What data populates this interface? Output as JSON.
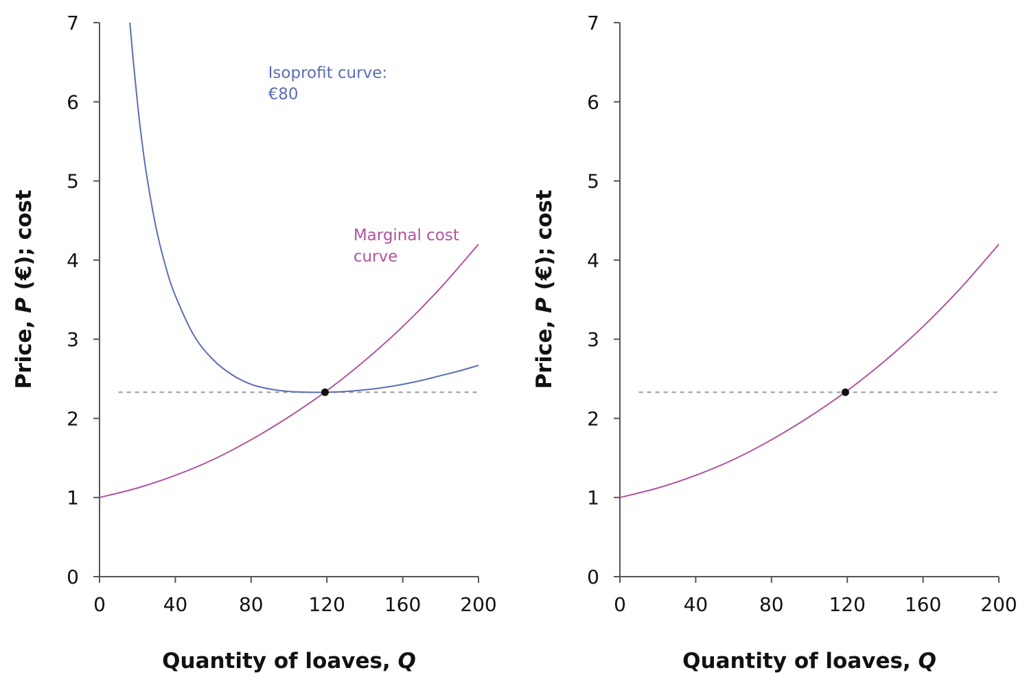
{
  "colors": {
    "isoprofit": "#5b6db4",
    "marginal_cost": "#b0539e",
    "reference_line": "#999999",
    "point": "#111111",
    "axis": "#555555"
  },
  "chart_data": [
    {
      "type": "line",
      "xlabel_parts": [
        "Quantity of loaves, ",
        "Q"
      ],
      "ylabel_parts": [
        "Price, ",
        "P",
        " (€); cost"
      ],
      "xlim": [
        0,
        200
      ],
      "ylim": [
        0,
        7
      ],
      "x_ticks": [
        0,
        40,
        80,
        120,
        160,
        200
      ],
      "y_ticks": [
        0,
        1,
        2,
        3,
        4,
        5,
        6,
        7
      ],
      "grid": false,
      "series": [
        {
          "key": "isoprofit",
          "x": [
            16,
            18,
            20,
            22,
            25,
            30,
            35,
            40,
            50,
            60,
            70,
            80,
            90,
            100,
            110,
            120,
            130,
            140,
            150,
            160,
            170,
            180,
            190,
            200
          ],
          "y": [
            7.0,
            6.47,
            5.99,
            5.57,
            5.05,
            4.39,
            3.91,
            3.55,
            3.04,
            2.74,
            2.55,
            2.43,
            2.37,
            2.34,
            2.33,
            2.33,
            2.34,
            2.36,
            2.39,
            2.43,
            2.48,
            2.54,
            2.6,
            2.67
          ]
        },
        {
          "key": "marginal_cost",
          "x": [
            0,
            20,
            40,
            60,
            80,
            100,
            120,
            140,
            160,
            180,
            200
          ],
          "y": [
            1.0,
            1.12,
            1.28,
            1.48,
            1.73,
            2.02,
            2.35,
            2.73,
            3.16,
            3.65,
            4.2
          ]
        }
      ],
      "annotations": [
        {
          "key": "isoprofit",
          "lines": [
            "Isoprofit curve:",
            "€80"
          ],
          "x": 89,
          "y": 6.3
        },
        {
          "key": "marginal_cost",
          "lines": [
            "Marginal cost",
            "curve"
          ],
          "x": 134,
          "y": 4.25
        }
      ],
      "reference_line_y": 2.33,
      "reference_line_xrange": [
        10,
        200
      ],
      "point": {
        "x": 119,
        "y": 2.33
      }
    },
    {
      "type": "line",
      "xlabel_parts": [
        "Quantity of loaves, ",
        "Q"
      ],
      "ylabel_parts": [
        "Price, ",
        "P",
        " (€); cost"
      ],
      "xlim": [
        0,
        200
      ],
      "ylim": [
        0,
        7
      ],
      "x_ticks": [
        0,
        40,
        80,
        120,
        160,
        200
      ],
      "y_ticks": [
        0,
        1,
        2,
        3,
        4,
        5,
        6,
        7
      ],
      "grid": false,
      "series": [
        {
          "key": "marginal_cost",
          "x": [
            0,
            20,
            40,
            60,
            80,
            100,
            120,
            140,
            160,
            180,
            200
          ],
          "y": [
            1.0,
            1.12,
            1.28,
            1.48,
            1.73,
            2.02,
            2.35,
            2.73,
            3.16,
            3.65,
            4.2
          ]
        }
      ],
      "annotations": [],
      "reference_line_y": 2.33,
      "reference_line_xrange": [
        10,
        200
      ],
      "point": {
        "x": 119,
        "y": 2.33
      }
    }
  ]
}
